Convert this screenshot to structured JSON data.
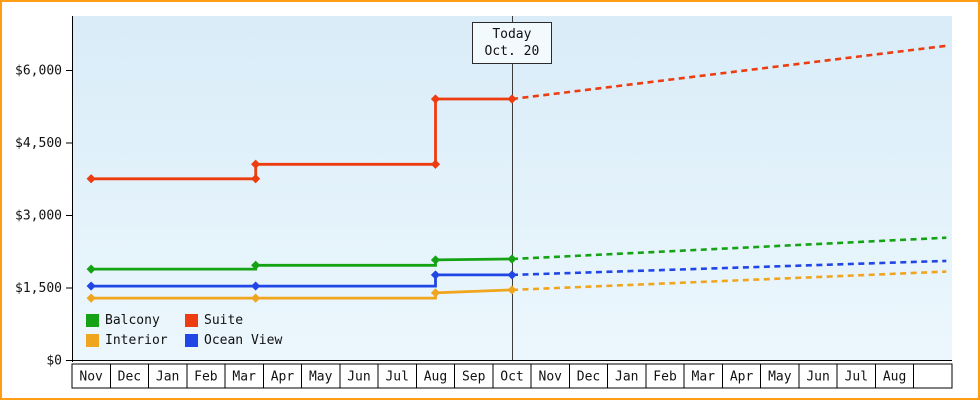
{
  "today": {
    "label_line1": "Today",
    "label_line2": "Oct. 20",
    "month_position": 11.5
  },
  "axis": {
    "y_ticks": [
      {
        "label": "$0",
        "value": 0
      },
      {
        "label": "$1,500",
        "value": 1500
      },
      {
        "label": "$3,000",
        "value": 3000
      },
      {
        "label": "$4,500",
        "value": 4500
      },
      {
        "label": "$6,000",
        "value": 6000
      }
    ],
    "months": [
      "Nov",
      "Dec",
      "Jan",
      "Feb",
      "Mar",
      "Apr",
      "May",
      "Jun",
      "Jul",
      "Aug",
      "Sep",
      "Oct",
      "Nov",
      "Dec",
      "Jan",
      "Feb",
      "Mar",
      "Apr",
      "May",
      "Jun",
      "Jul",
      "Aug",
      ""
    ]
  },
  "chart_data": {
    "type": "line",
    "title": "",
    "x_unit": "months; x value 0 = left edge of first Nov cell, each whole number = one month cell; y values are cabin prices in USD",
    "ylim": [
      0,
      7000
    ],
    "today_month_position": 11.5,
    "series": [
      {
        "name": "Interior",
        "color": "#f0a51f",
        "solid": [
          [
            0.5,
            1280
          ],
          [
            9.5,
            1280
          ],
          [
            9.5,
            1390
          ],
          [
            11.5,
            1450
          ]
        ],
        "markers": [
          [
            0.5,
            1280
          ],
          [
            4.8,
            1280
          ],
          [
            9.5,
            1390
          ],
          [
            11.5,
            1450
          ]
        ],
        "dashed": [
          [
            11.5,
            1450
          ],
          [
            22.85,
            1830
          ]
        ]
      },
      {
        "name": "Ocean View",
        "color": "#2047e6",
        "solid": [
          [
            0.5,
            1530
          ],
          [
            9.5,
            1530
          ],
          [
            9.5,
            1760
          ],
          [
            11.5,
            1760
          ]
        ],
        "markers": [
          [
            0.5,
            1530
          ],
          [
            4.8,
            1530
          ],
          [
            9.5,
            1760
          ],
          [
            11.5,
            1760
          ]
        ],
        "dashed": [
          [
            11.5,
            1760
          ],
          [
            22.85,
            2050
          ]
        ]
      },
      {
        "name": "Balcony",
        "color": "#15a315",
        "solid": [
          [
            0.5,
            1880
          ],
          [
            4.8,
            1880
          ],
          [
            4.8,
            1960
          ],
          [
            9.5,
            1960
          ],
          [
            9.5,
            2070
          ],
          [
            11.5,
            2090
          ]
        ],
        "markers": [
          [
            0.5,
            1880
          ],
          [
            4.8,
            1960
          ],
          [
            9.5,
            2070
          ],
          [
            11.5,
            2090
          ]
        ],
        "dashed": [
          [
            11.5,
            2090
          ],
          [
            22.85,
            2530
          ]
        ]
      },
      {
        "name": "Suite",
        "color": "#ed3c10",
        "solid": [
          [
            0.5,
            3750
          ],
          [
            4.8,
            3750
          ],
          [
            4.8,
            4050
          ],
          [
            9.5,
            4050
          ],
          [
            9.5,
            5400
          ],
          [
            11.5,
            5400
          ]
        ],
        "markers": [
          [
            0.5,
            3750
          ],
          [
            4.8,
            3750
          ],
          [
            4.8,
            4050
          ],
          [
            9.5,
            4050
          ],
          [
            9.5,
            5400
          ],
          [
            11.5,
            5400
          ]
        ],
        "dashed": [
          [
            11.5,
            5400
          ],
          [
            22.85,
            6500
          ]
        ]
      }
    ],
    "legend": {
      "items": [
        "Balcony",
        "Suite",
        "Interior",
        "Ocean View"
      ],
      "position": "bottom-left-inside"
    }
  },
  "colors": {
    "frame_border": "#ff9e15",
    "plot_bg_top": "#d9ecf8",
    "plot_bg_bottom": "#ecf7fd",
    "axis": "#000000",
    "today_line": "#3c3c3c",
    "month_cell_bg": "#ffffff",
    "text": "#111111"
  }
}
